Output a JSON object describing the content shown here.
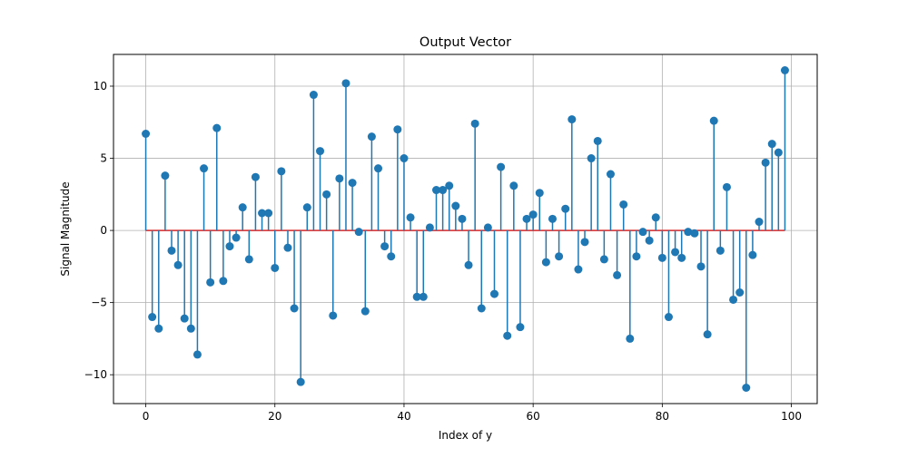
{
  "colors": {
    "stem": "#1f77b4",
    "marker": "#1f77b4",
    "baseline": "#d62728",
    "grid": "#b0b0b0",
    "axes": "#000000",
    "background": "#ffffff"
  },
  "chart_data": {
    "type": "stem",
    "title": "Output Vector",
    "xlabel": "Index of y",
    "ylabel": "Signal Magnitude",
    "xlim": [
      -5,
      104
    ],
    "ylim": [
      -12,
      12.2
    ],
    "xticks": [
      0,
      20,
      40,
      60,
      80,
      100
    ],
    "yticks": [
      -10,
      -5,
      0,
      5,
      10
    ],
    "xtick_labels": [
      "0",
      "20",
      "40",
      "60",
      "80",
      "100"
    ],
    "ytick_labels": [
      "−10",
      "−5",
      "0",
      "5",
      "10"
    ],
    "grid": true,
    "baseline": 0,
    "x": [
      0,
      1,
      2,
      3,
      4,
      5,
      6,
      7,
      8,
      9,
      10,
      11,
      12,
      13,
      14,
      15,
      16,
      17,
      18,
      19,
      20,
      21,
      22,
      23,
      24,
      25,
      26,
      27,
      28,
      29,
      30,
      31,
      32,
      33,
      34,
      35,
      36,
      37,
      38,
      39,
      40,
      41,
      42,
      43,
      44,
      45,
      46,
      47,
      48,
      49,
      50,
      51,
      52,
      53,
      54,
      55,
      56,
      57,
      58,
      59,
      60,
      61,
      62,
      63,
      64,
      65,
      66,
      67,
      68,
      69,
      70,
      71,
      72,
      73,
      74,
      75,
      76,
      77,
      78,
      79,
      80,
      81,
      82,
      83,
      84,
      85,
      86,
      87,
      88,
      89,
      90,
      91,
      92,
      93,
      94,
      95,
      96,
      97,
      98,
      99
    ],
    "values": [
      6.7,
      -6.0,
      -6.8,
      3.8,
      -1.4,
      -2.4,
      -6.1,
      -6.8,
      -8.6,
      4.3,
      -3.6,
      7.1,
      -3.5,
      -1.1,
      -0.5,
      1.6,
      -2.0,
      3.7,
      1.2,
      1.2,
      -2.6,
      4.1,
      -1.2,
      -5.4,
      -10.5,
      1.6,
      9.4,
      5.5,
      2.5,
      -5.9,
      3.6,
      10.2,
      3.3,
      -0.1,
      -5.6,
      6.5,
      4.3,
      -1.1,
      -1.8,
      7.0,
      5.0,
      0.9,
      -4.6,
      -4.6,
      0.2,
      2.8,
      2.8,
      3.1,
      1.7,
      0.8,
      -2.4,
      7.4,
      -5.4,
      0.2,
      -4.4,
      4.4,
      -7.3,
      3.1,
      -6.7,
      0.8,
      1.1,
      2.6,
      -2.2,
      0.8,
      -1.8,
      1.5,
      7.7,
      -2.7,
      -0.8,
      5.0,
      6.2,
      -2.0,
      3.9,
      -3.1,
      1.8,
      -7.5,
      -1.8,
      -0.1,
      -0.7,
      0.9,
      -1.9,
      -6.0,
      -1.5,
      -1.9,
      -0.1,
      -0.2,
      -2.5,
      -7.2,
      7.6,
      -1.4,
      3.0,
      -4.8,
      -4.3,
      -10.9,
      -1.7,
      0.6,
      4.7,
      6.0,
      5.4,
      11.1
    ]
  }
}
